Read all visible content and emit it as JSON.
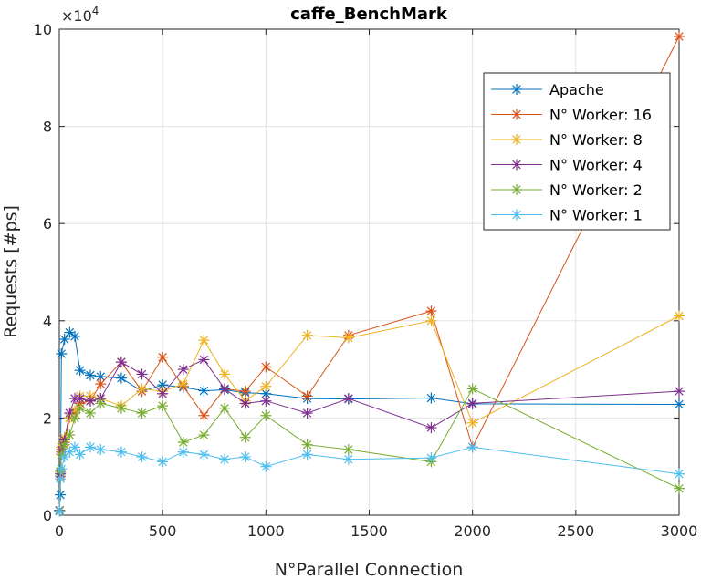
{
  "chart_data": {
    "type": "line",
    "title": "caffe_BenchMark",
    "xlabel": "N°Parallel Connection",
    "ylabel": "Requests [#ps]",
    "exponent_label": "×10",
    "exponent_power": "4",
    "xlim": [
      0,
      3000
    ],
    "ylim": [
      0,
      100000
    ],
    "xticks": [
      0,
      500,
      1000,
      1500,
      2000,
      2500,
      3000
    ],
    "xtick_labels": [
      "0",
      "500",
      "1000",
      "1500",
      "2000",
      "2500",
      "3000"
    ],
    "yticks": [
      0,
      20000,
      40000,
      60000,
      80000,
      100000
    ],
    "ytick_labels": [
      "0",
      "2",
      "4",
      "6",
      "8",
      "10"
    ],
    "grid": true,
    "legend_position": "top-right",
    "series": [
      {
        "name": "Apache",
        "color": "#0072BD",
        "x": [
          1,
          5,
          10,
          25,
          50,
          75,
          100,
          150,
          200,
          300,
          400,
          500,
          600,
          700,
          800,
          900,
          1000,
          1200,
          1400,
          1800,
          2000,
          3000
        ],
        "y": [
          1000,
          4200,
          33200,
          36200,
          37600,
          36800,
          29800,
          28800,
          28500,
          28200,
          25500,
          26800,
          26300,
          25600,
          25800,
          25200,
          25000,
          24000,
          23900,
          24100,
          22900,
          22800
        ]
      },
      {
        "name": "N° Worker: 16",
        "color": "#D95319",
        "x": [
          1,
          5,
          10,
          25,
          50,
          75,
          100,
          150,
          200,
          300,
          400,
          500,
          600,
          700,
          800,
          900,
          1000,
          1200,
          1400,
          1800,
          2000,
          3000
        ],
        "y": [
          900,
          8000,
          13000,
          15000,
          20000,
          21000,
          23000,
          23500,
          27000,
          31500,
          25500,
          32500,
          26500,
          20500,
          26000,
          25500,
          30500,
          24500,
          37000,
          42000,
          14000,
          98500
        ]
      },
      {
        "name": "N° Worker: 8",
        "color": "#EDB120",
        "x": [
          1,
          5,
          10,
          25,
          50,
          75,
          100,
          150,
          200,
          300,
          400,
          500,
          600,
          700,
          800,
          900,
          1000,
          1200,
          1400,
          1800,
          2000,
          3000
        ],
        "y": [
          1000,
          9000,
          14000,
          16000,
          20000,
          21500,
          24500,
          24500,
          24000,
          22500,
          26000,
          25500,
          27000,
          36000,
          29000,
          23500,
          26500,
          37000,
          36500,
          40000,
          19000,
          41000
        ]
      },
      {
        "name": "N° Worker: 4",
        "color": "#7E2F8E",
        "x": [
          1,
          5,
          10,
          25,
          50,
          75,
          100,
          150,
          200,
          300,
          400,
          500,
          600,
          700,
          800,
          900,
          1000,
          1200,
          1400,
          1800,
          2000,
          3000
        ],
        "y": [
          1000,
          8500,
          13500,
          15500,
          21000,
          24000,
          24000,
          23500,
          24000,
          31500,
          29000,
          25000,
          30000,
          32000,
          26000,
          23000,
          23500,
          21000,
          24000,
          18000,
          23000,
          25500
        ]
      },
      {
        "name": "N° Worker: 2",
        "color": "#77AC30",
        "x": [
          1,
          5,
          10,
          25,
          50,
          75,
          100,
          150,
          200,
          300,
          400,
          500,
          600,
          700,
          800,
          900,
          1000,
          1200,
          1400,
          1800,
          2000,
          3000
        ],
        "y": [
          900,
          9000,
          12500,
          14500,
          16500,
          20000,
          22000,
          21000,
          23000,
          22000,
          21000,
          22500,
          15000,
          16500,
          22000,
          16000,
          20500,
          14500,
          13500,
          11000,
          26000,
          5500
        ]
      },
      {
        "name": "N° Worker: 1",
        "color": "#4DBEEE",
        "x": [
          1,
          5,
          10,
          25,
          50,
          75,
          100,
          150,
          200,
          300,
          400,
          500,
          600,
          700,
          800,
          900,
          1000,
          1200,
          1400,
          1800,
          2000,
          3000
        ],
        "y": [
          800,
          7500,
          9500,
          12000,
          13000,
          14000,
          12500,
          14000,
          13500,
          13000,
          12000,
          11000,
          13000,
          12500,
          11500,
          12000,
          10000,
          12500,
          11500,
          11800,
          14000,
          8500
        ]
      }
    ]
  }
}
